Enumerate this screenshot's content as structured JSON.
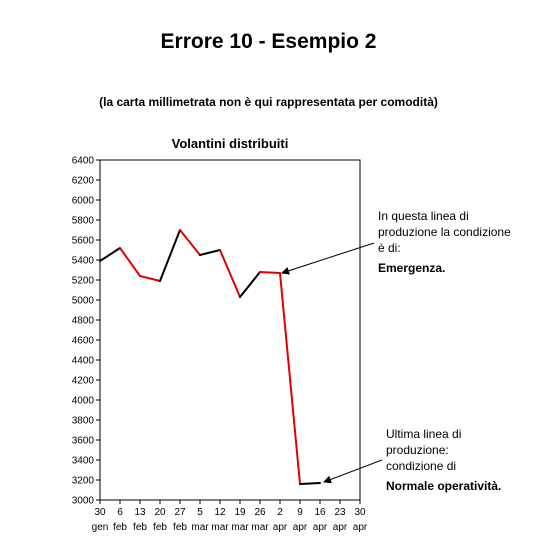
{
  "page": {
    "title": "Errore 10 - Esempio 2",
    "subtitle": "(la carta millimetrata non è qui rappresentata per comodità)"
  },
  "annotations": [
    {
      "lines": [
        "In questa linea di",
        "produzione la condizione",
        "è di:"
      ],
      "emphasis": "Emergenza."
    },
    {
      "lines": [
        "Ultima linea di",
        "produzione:",
        "condizione di"
      ],
      "emphasis": "Normale operatività."
    }
  ],
  "chart_data": {
    "type": "line",
    "title": "Volantini distribuiti",
    "xlabel": "",
    "ylabel": "",
    "ylim": [
      3000,
      6400
    ],
    "ystep": 200,
    "categories": [
      [
        "30",
        "gen"
      ],
      [
        "6",
        "feb"
      ],
      [
        "13",
        "feb"
      ],
      [
        "20",
        "feb"
      ],
      [
        "27",
        "feb"
      ],
      [
        "5",
        "mar"
      ],
      [
        "12",
        "mar"
      ],
      [
        "19",
        "mar"
      ],
      [
        "26",
        "mar"
      ],
      [
        "2",
        "apr"
      ],
      [
        "9",
        "apr"
      ],
      [
        "16",
        "apr"
      ],
      [
        "23",
        "apr"
      ],
      [
        "30",
        "apr"
      ]
    ],
    "values": [
      5390,
      5520,
      5240,
      5190,
      5700,
      5450,
      5500,
      5030,
      5280,
      5270,
      3160,
      3170,
      null,
      null
    ],
    "segment_colors": [
      "#000000",
      "#e00000",
      "#e00000",
      "#000000",
      "#e00000",
      "#000000",
      "#e00000",
      "#000000",
      "#e00000",
      "#e00000",
      "#000000"
    ],
    "grid": false,
    "legend": "none"
  }
}
